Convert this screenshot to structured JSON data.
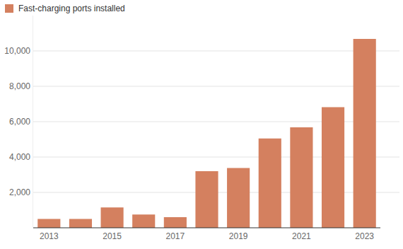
{
  "chart_data": {
    "type": "bar",
    "categories": [
      "2013",
      null,
      "2015",
      null,
      "2017",
      null,
      "2019",
      null,
      "2021",
      null,
      "2023"
    ],
    "series": [
      {
        "name": "Fast-charging ports installed",
        "color": "#d4805f",
        "values": [
          500,
          500,
          1150,
          750,
          600,
          3200,
          3380,
          5050,
          5680,
          6820,
          10680
        ]
      }
    ],
    "ylim": [
      0,
      12000
    ],
    "yticks": [
      {
        "value": 2000,
        "label": "2,000"
      },
      {
        "value": 4000,
        "label": "4,000"
      },
      {
        "value": 6000,
        "label": "6,000"
      },
      {
        "value": 8000,
        "label": "8,000"
      },
      {
        "value": 10000,
        "label": "10,000"
      }
    ],
    "grid": true,
    "legend": "top-left"
  }
}
